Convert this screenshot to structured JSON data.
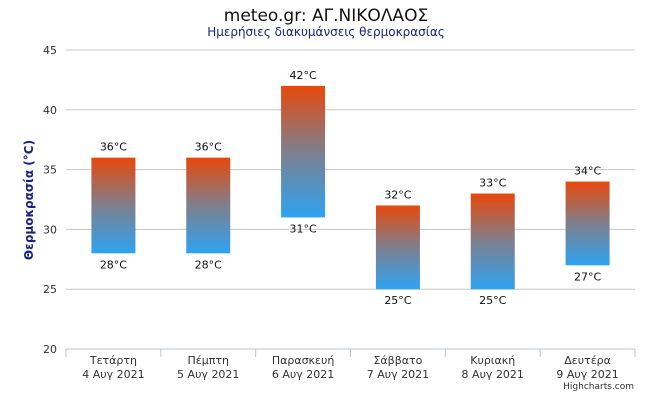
{
  "chart_data": {
    "type": "columnrange",
    "title": "meteo.gr: ΑΓ.ΝΙΚΟΛΑΟΣ",
    "subtitle": "Ημερήσιες διακυμάνσεις θερμοκρασίας",
    "ylabel": "Θερμοκρασία (°C)",
    "ylim": [
      20,
      45
    ],
    "yticks": [
      20,
      25,
      30,
      35,
      40,
      45
    ],
    "grid": true,
    "categories": [
      [
        "Τετάρτη",
        "4 Αυγ 2021"
      ],
      [
        "Πέμπτη",
        "5 Αυγ 2021"
      ],
      [
        "Παρασκευή",
        "6 Αυγ 2021"
      ],
      [
        "Σάββατο",
        "7 Αυγ 2021"
      ],
      [
        "Κυριακή",
        "8 Αυγ 2021"
      ],
      [
        "Δευτέρα",
        "9 Αυγ 2021"
      ]
    ],
    "low": [
      28,
      28,
      31,
      25,
      25,
      27
    ],
    "high": [
      36,
      36,
      42,
      32,
      33,
      34
    ],
    "value_suffix": "°C",
    "colors": {
      "high": "#e8480c",
      "mid": "#7e7f8d",
      "low": "#2ea3f2"
    }
  },
  "credit": "Highcharts.com"
}
